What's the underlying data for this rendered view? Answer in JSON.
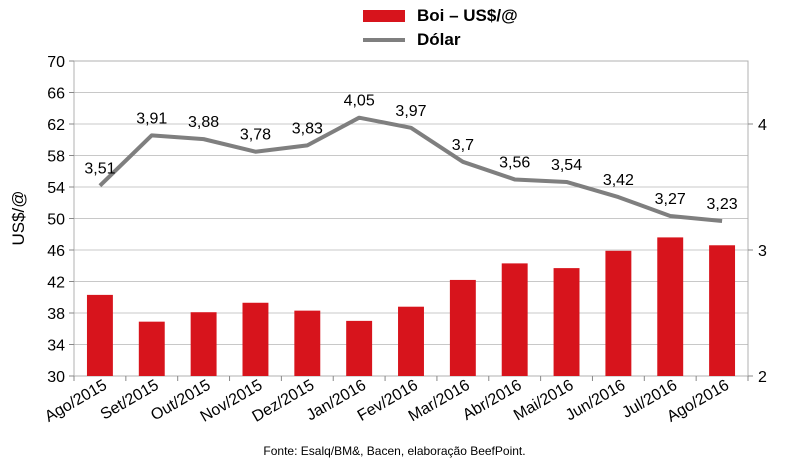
{
  "chart_data": {
    "type": "bar+line",
    "categories": [
      "Ago/2015",
      "Set/2015",
      "Out/2015",
      "Nov/2015",
      "Dez/2015",
      "Jan/2016",
      "Fev/2016",
      "Mar/2016",
      "Abr/2016",
      "Mai/2016",
      "Jun/2016",
      "Jul/2016",
      "Ago/2016"
    ],
    "series": [
      {
        "name": "Boi – US$/@",
        "type": "bar",
        "axis": "left",
        "color": "#d7141c",
        "values": [
          40.3,
          36.9,
          38.1,
          39.3,
          38.3,
          37.0,
          38.8,
          42.2,
          44.3,
          43.7,
          45.9,
          47.6,
          46.6
        ]
      },
      {
        "name": "Dólar",
        "type": "line",
        "axis": "right",
        "color": "#7f7f7f",
        "values": [
          3.51,
          3.91,
          3.88,
          3.78,
          3.83,
          4.05,
          3.97,
          3.7,
          3.56,
          3.54,
          3.42,
          3.27,
          3.23
        ],
        "labels": [
          "3,51",
          "3,91",
          "3,88",
          "3,78",
          "3,83",
          "4,05",
          "3,97",
          "3,7",
          "3,56",
          "3,54",
          "3,42",
          "3,27",
          "3,23"
        ]
      }
    ],
    "ylabel": "US$/@",
    "ylim": [
      30,
      70
    ],
    "yticks": [
      "30",
      "34",
      "38",
      "42",
      "46",
      "50",
      "54",
      "58",
      "62",
      "66",
      "70"
    ],
    "y2lim": [
      2,
      4.5
    ],
    "y2ticks": [
      "2",
      "3",
      "4"
    ],
    "grid": true,
    "legend_position": "top-center",
    "source": "Fonte: Esalq/BM&, Bacen, elaboração BeefPoint."
  }
}
